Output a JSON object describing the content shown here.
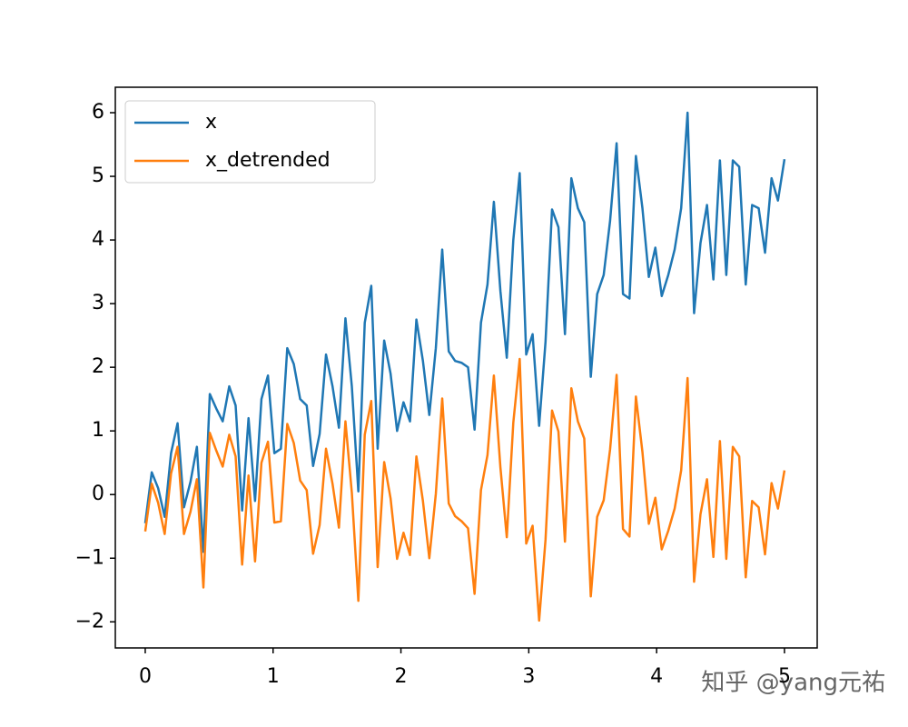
{
  "chart_data": {
    "type": "line",
    "x": [
      0,
      0.051,
      0.101,
      0.152,
      0.202,
      0.253,
      0.303,
      0.354,
      0.404,
      0.455,
      0.505,
      0.556,
      0.606,
      0.657,
      0.707,
      0.758,
      0.808,
      0.859,
      0.909,
      0.96,
      1.01,
      1.061,
      1.111,
      1.162,
      1.212,
      1.263,
      1.313,
      1.364,
      1.414,
      1.465,
      1.515,
      1.566,
      1.616,
      1.667,
      1.717,
      1.768,
      1.818,
      1.869,
      1.919,
      1.97,
      2.02,
      2.071,
      2.121,
      2.172,
      2.222,
      2.273,
      2.323,
      2.374,
      2.424,
      2.475,
      2.525,
      2.576,
      2.626,
      2.677,
      2.727,
      2.778,
      2.828,
      2.879,
      2.929,
      2.98,
      3.03,
      3.081,
      3.131,
      3.182,
      3.232,
      3.283,
      3.333,
      3.384,
      3.434,
      3.485,
      3.535,
      3.586,
      3.636,
      3.687,
      3.737,
      3.788,
      3.838,
      3.889,
      3.939,
      3.99,
      4.04,
      4.091,
      4.141,
      4.192,
      4.242,
      4.293,
      4.343,
      4.394,
      4.444,
      4.495,
      4.545,
      4.596,
      4.646,
      4.697,
      4.747,
      4.798,
      4.848,
      4.899,
      4.949,
      5.0
    ],
    "series": [
      {
        "name": "x",
        "color": "#1f77b4",
        "values": [
          -0.45,
          0.35,
          0.1,
          -0.35,
          0.65,
          1.12,
          -0.2,
          0.2,
          0.75,
          -0.9,
          1.58,
          1.35,
          1.15,
          1.7,
          1.4,
          -0.25,
          1.2,
          -0.1,
          1.5,
          1.87,
          0.65,
          0.72,
          2.3,
          2.05,
          1.5,
          1.4,
          0.45,
          0.95,
          2.2,
          1.7,
          1.05,
          2.77,
          1.7,
          0.05,
          2.7,
          3.28,
          0.72,
          2.42,
          1.9,
          1.0,
          1.45,
          1.15,
          2.75,
          2.1,
          1.25,
          2.3,
          3.85,
          2.25,
          2.1,
          2.07,
          2.0,
          1.02,
          2.7,
          3.3,
          4.6,
          3.2,
          2.15,
          4.0,
          5.05,
          2.2,
          2.52,
          1.08,
          2.4,
          4.48,
          4.2,
          2.52,
          4.97,
          4.5,
          4.28,
          1.85,
          3.15,
          3.45,
          4.3,
          5.52,
          3.15,
          3.08,
          5.32,
          4.5,
          3.42,
          3.88,
          3.12,
          3.45,
          3.85,
          4.5,
          6.0,
          2.85,
          3.95,
          4.55,
          3.38,
          5.25,
          3.45,
          5.25,
          5.15,
          3.3,
          4.55,
          4.5,
          3.8,
          4.97,
          4.62,
          5.27
        ]
      },
      {
        "name": "x_detrended",
        "color": "#ff7f0e",
        "values": [
          -0.58,
          0.17,
          -0.13,
          -0.62,
          0.33,
          0.75,
          -0.62,
          -0.27,
          0.24,
          -1.46,
          0.97,
          0.69,
          0.44,
          0.94,
          0.6,
          -1.1,
          0.3,
          -1.05,
          0.5,
          0.83,
          -0.44,
          -0.42,
          1.11,
          0.81,
          0.22,
          0.07,
          -0.93,
          -0.48,
          0.72,
          0.17,
          -0.52,
          1.15,
          0.03,
          -1.67,
          0.94,
          1.47,
          -1.14,
          0.51,
          -0.06,
          -1.01,
          -0.6,
          -0.95,
          0.6,
          -0.1,
          -1.0,
          0.01,
          1.51,
          -0.14,
          -0.34,
          -0.42,
          -0.53,
          -1.56,
          0.07,
          0.62,
          1.87,
          0.43,
          -0.67,
          1.13,
          2.13,
          -0.77,
          -0.49,
          -1.98,
          -0.71,
          1.32,
          0.99,
          -0.74,
          1.67,
          1.15,
          0.88,
          -1.6,
          -0.35,
          -0.09,
          0.71,
          1.88,
          -0.54,
          -0.66,
          1.54,
          0.67,
          -0.46,
          -0.05,
          -0.86,
          -0.57,
          -0.22,
          0.38,
          1.83,
          -1.37,
          -0.31,
          0.24,
          -0.98,
          0.84,
          -1.01,
          0.75,
          0.6,
          -1.3,
          -0.1,
          -0.2,
          -0.94,
          0.18,
          -0.22,
          0.38
        ]
      }
    ],
    "xlim": [
      -0.234,
      5.256
    ],
    "ylim": [
      -2.41,
      6.4
    ],
    "xticks": [
      0,
      1,
      2,
      3,
      4,
      5
    ],
    "yticks": [
      {
        "value": -2,
        "label": "−2"
      },
      {
        "value": -1,
        "label": "−1"
      },
      0,
      1,
      2,
      3,
      4,
      5,
      6
    ],
    "legend": "upper left",
    "watermark": "知乎 @yang元祐"
  }
}
